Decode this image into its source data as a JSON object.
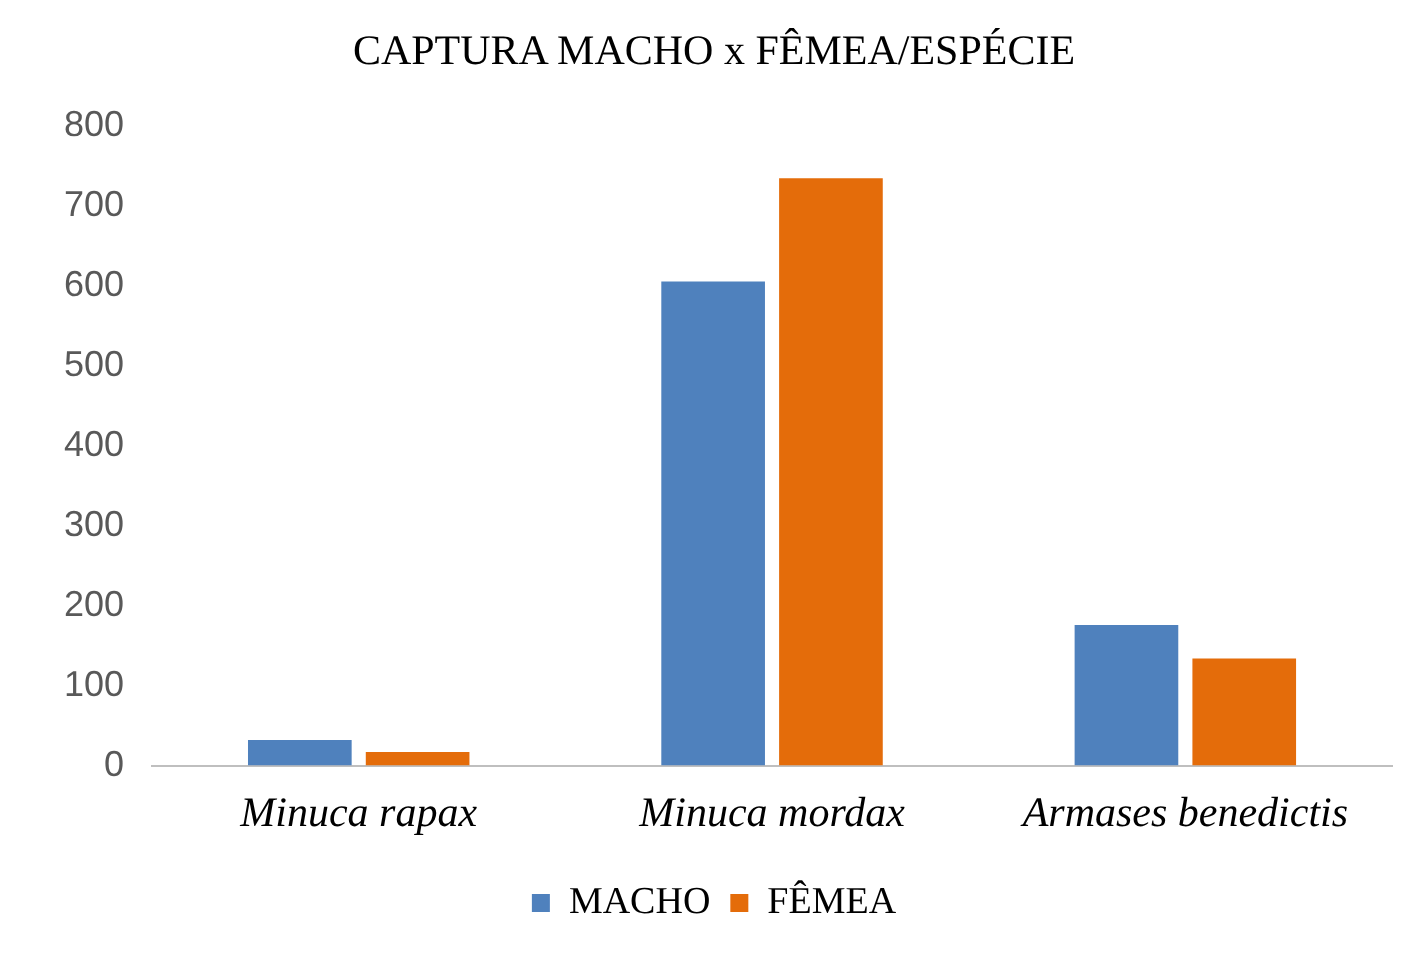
{
  "chart_data": {
    "type": "bar",
    "title": "CAPTURA MACHO x FÊMEA/ESPÉCIE",
    "categories": [
      "Minuca rapax",
      "Minuca mordax",
      "Armases benedictis"
    ],
    "series": [
      {
        "name": "MACHO",
        "color": "#4f81bd",
        "values": [
          32,
          606,
          176
        ]
      },
      {
        "name": "FÊMEA",
        "color": "#e46c0a",
        "values": [
          17,
          735,
          134
        ]
      }
    ],
    "ylim": [
      0,
      800
    ],
    "yticks": [
      0,
      100,
      200,
      300,
      400,
      500,
      600,
      700,
      800
    ],
    "grid": false,
    "legend": "bottom"
  }
}
